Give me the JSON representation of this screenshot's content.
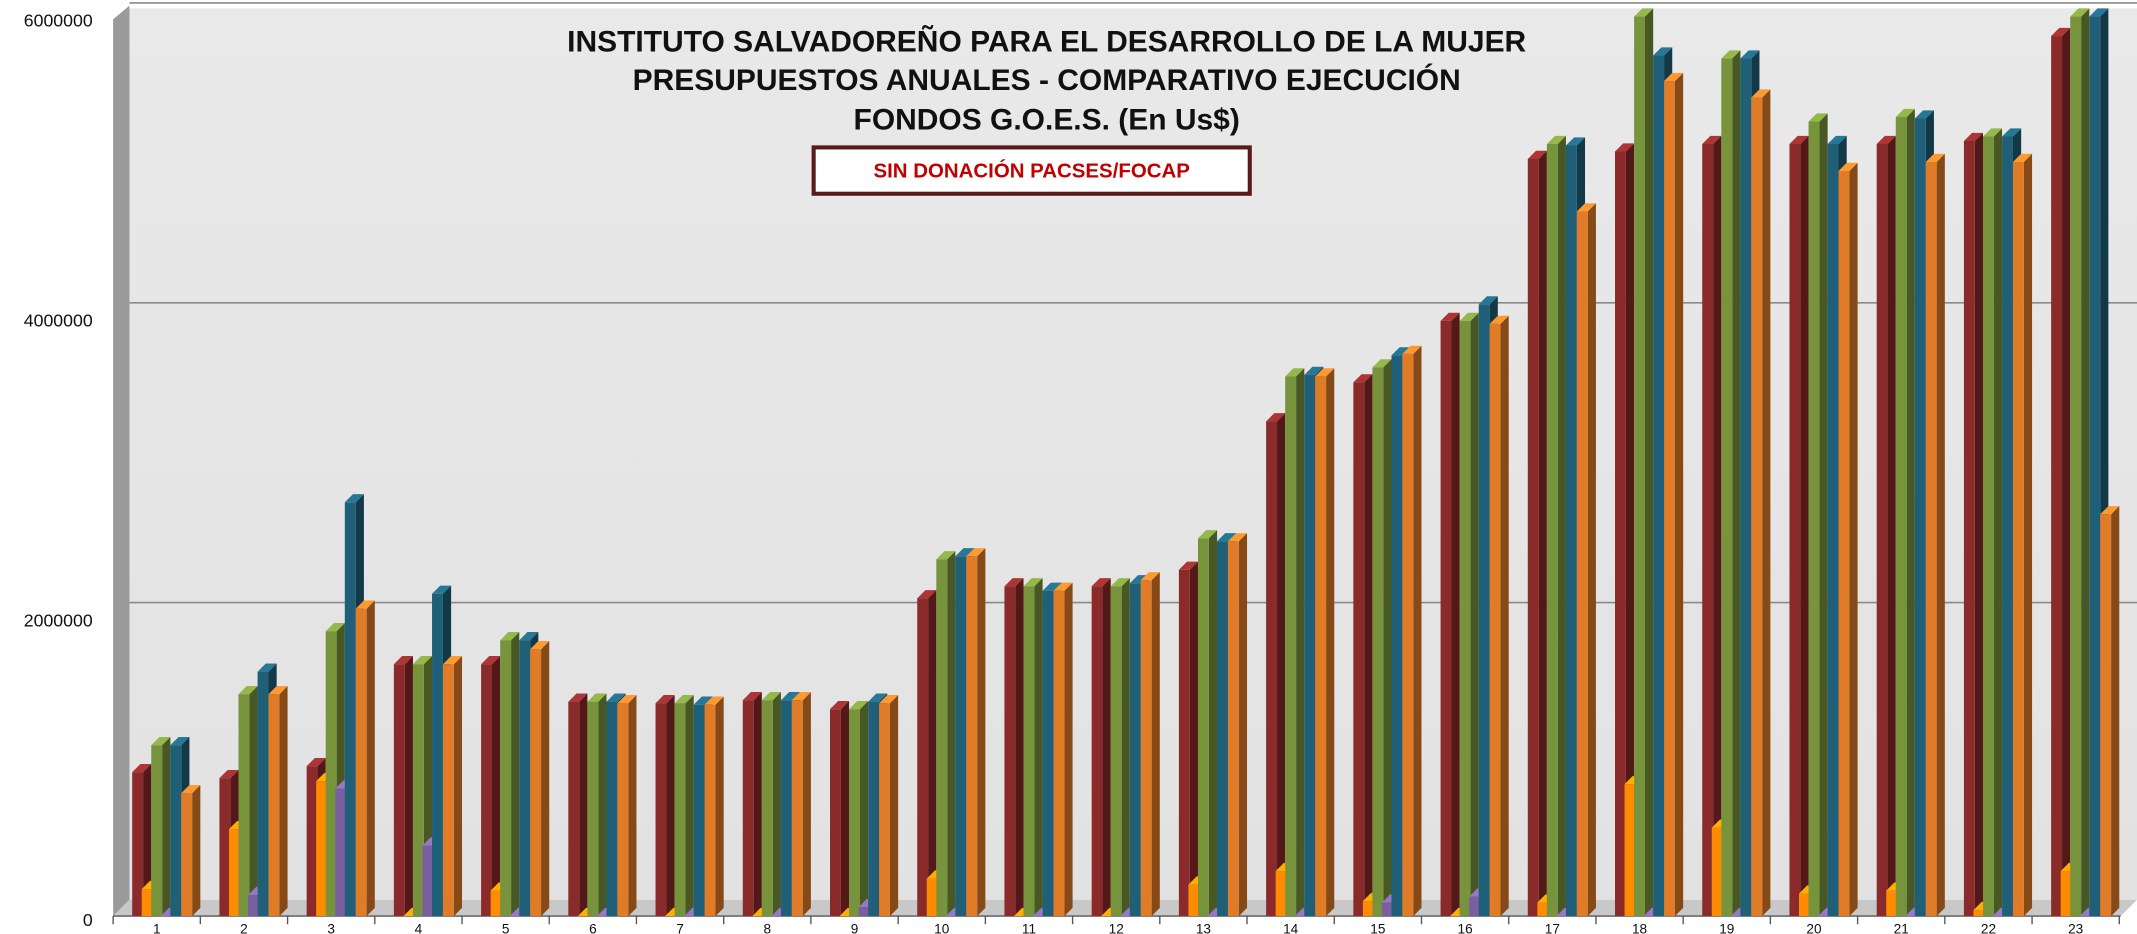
{
  "chart_data": {
    "type": "bar3d",
    "title": [
      "INSTITUTO SALVADOREÑO PARA EL DESARROLLO DE LA MUJER",
      "PRESUPUESTOS ANUALES - COMPARATIVO EJECUCIÓN",
      "FONDOS G.O.E.S.  (En Us$)"
    ],
    "annotation": "SIN DONACIÓN  PACSES/FOCAP",
    "categories": [
      "1",
      "2",
      "3",
      "4",
      "5",
      "6",
      "7",
      "8",
      "9",
      "10",
      "11",
      "12",
      "13",
      "14",
      "15",
      "16",
      "17",
      "18",
      "19",
      "20",
      "21",
      "22",
      "23"
    ],
    "ylim": [
      0,
      6000000
    ],
    "yticks": [
      0,
      2000000,
      4000000,
      6000000
    ],
    "grid": true,
    "series": [
      {
        "color": "#8b2a2a",
        "values": [
          960000,
          920000,
          1000000,
          1680000,
          1680000,
          1430000,
          1420000,
          1440000,
          1380000,
          2120000,
          2200000,
          2200000,
          2310000,
          3300000,
          3560000,
          3970000,
          5050000,
          5100000,
          5150000,
          5150000,
          5150000,
          5170000,
          5870000
        ]
      },
      {
        "color": "#ff8c00",
        "values": [
          180000,
          580000,
          900000,
          0,
          170000,
          0,
          0,
          0,
          0,
          250000,
          0,
          0,
          210000,
          300000,
          100000,
          0,
          90000,
          880000,
          590000,
          150000,
          170000,
          40000,
          300000
        ]
      },
      {
        "color": "#77933c",
        "values": [
          1140000,
          1480000,
          1900000,
          1680000,
          1840000,
          1430000,
          1420000,
          1440000,
          1380000,
          2380000,
          2200000,
          2200000,
          2520000,
          3600000,
          3660000,
          3970000,
          5150000,
          6000000,
          5720000,
          5300000,
          5330000,
          5200000,
          6000000
        ]
      },
      {
        "color": "#7a5fa0",
        "values": [
          0,
          140000,
          850000,
          470000,
          0,
          0,
          0,
          0,
          60000,
          0,
          0,
          0,
          0,
          0,
          90000,
          130000,
          0,
          0,
          0,
          0,
          0,
          0,
          0
        ]
      },
      {
        "color": "#1f5f78",
        "values": [
          1140000,
          1630000,
          2760000,
          2150000,
          1840000,
          1430000,
          1410000,
          1440000,
          1430000,
          2400000,
          2170000,
          2220000,
          2500000,
          3610000,
          3740000,
          4080000,
          5140000,
          5740000,
          5720000,
          5150000,
          5320000,
          5200000,
          6000000
        ]
      },
      {
        "color": "#e07b28",
        "values": [
          820000,
          1480000,
          2050000,
          1680000,
          1780000,
          1420000,
          1410000,
          1440000,
          1420000,
          2400000,
          2170000,
          2240000,
          2500000,
          3600000,
          3750000,
          3950000,
          4700000,
          5570000,
          5460000,
          4970000,
          5030000,
          5030000,
          2680000
        ]
      }
    ]
  }
}
